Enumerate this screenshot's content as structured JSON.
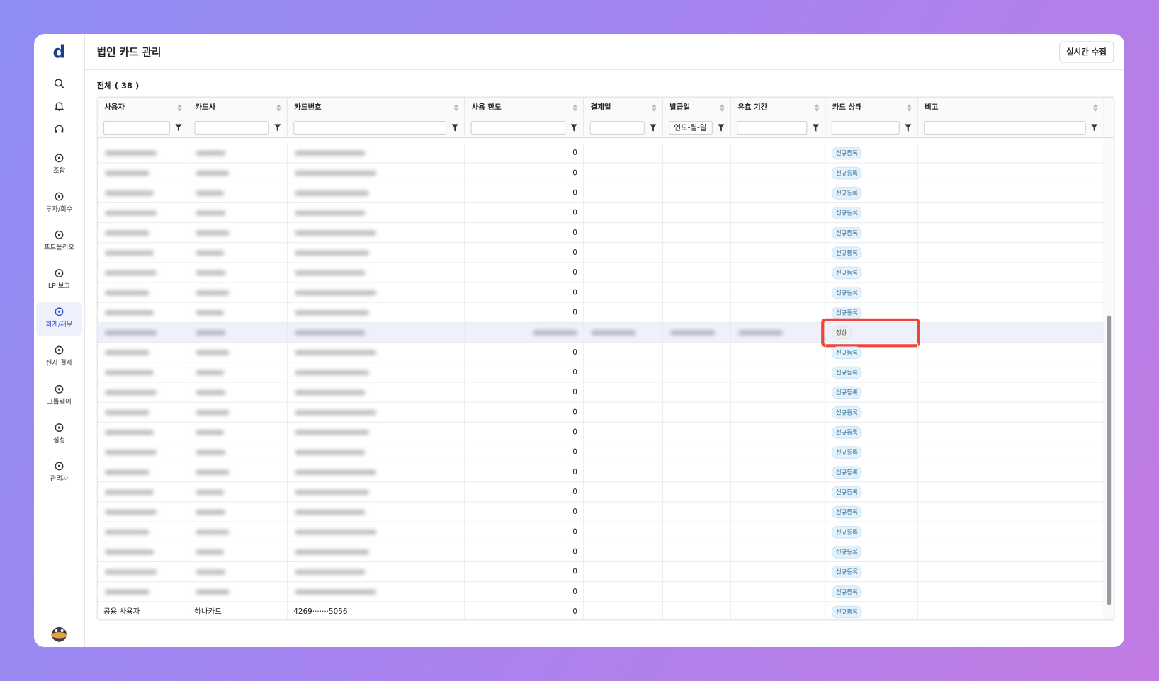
{
  "sidebar": {
    "logo": "d",
    "items": [
      {
        "label": "조합"
      },
      {
        "label": "투자/회수"
      },
      {
        "label": "포트폴리오"
      },
      {
        "label": "LP 보고"
      },
      {
        "label": "회계/재무",
        "active": true
      },
      {
        "label": "전자 결재"
      },
      {
        "label": "그룹웨어"
      },
      {
        "label": "설정"
      },
      {
        "label": "관리자"
      }
    ]
  },
  "header": {
    "title": "법인 카드 관리",
    "button": "실시간 수집"
  },
  "table": {
    "count_label": "전체 ( 38 )",
    "date_placeholder": "연도-월-일",
    "columns": [
      "사용자",
      "카드사",
      "카드번호",
      "사용 한도",
      "결제일",
      "발급일",
      "유효 기간",
      "카드 상태",
      "비고"
    ],
    "rows": [
      {
        "limit": "0",
        "status": "신규등록"
      },
      {
        "limit": "0",
        "status": "신규등록"
      },
      {
        "limit": "0",
        "status": "신규등록"
      },
      {
        "limit": "0",
        "status": "신규등록"
      },
      {
        "limit": "0",
        "status": "신규등록"
      },
      {
        "limit": "0",
        "status": "신규등록"
      },
      {
        "limit": "0",
        "status": "신규등록"
      },
      {
        "limit": "0",
        "status": "신규등록"
      },
      {
        "limit": "0",
        "status": "신규등록"
      },
      {
        "status": "정상",
        "highlighted": true
      },
      {
        "limit": "0",
        "status": "신규등록"
      },
      {
        "limit": "0",
        "status": "신규등록"
      },
      {
        "limit": "0",
        "status": "신규등록"
      },
      {
        "limit": "0",
        "status": "신규등록"
      },
      {
        "limit": "0",
        "status": "신규등록"
      },
      {
        "limit": "0",
        "status": "신규등록"
      },
      {
        "limit": "0",
        "status": "신규등록"
      },
      {
        "limit": "0",
        "status": "신규등록"
      },
      {
        "limit": "0",
        "status": "신규등록"
      },
      {
        "limit": "0",
        "status": "신규등록"
      },
      {
        "limit": "0",
        "status": "신규등록"
      },
      {
        "limit": "0",
        "status": "신규등록"
      },
      {
        "limit": "0",
        "status": "신규등록"
      },
      {
        "user": "공용 사용자",
        "card_company": "하나카드",
        "card_number": "4269·······5056",
        "limit": "0",
        "status": "신규등록"
      }
    ]
  }
}
